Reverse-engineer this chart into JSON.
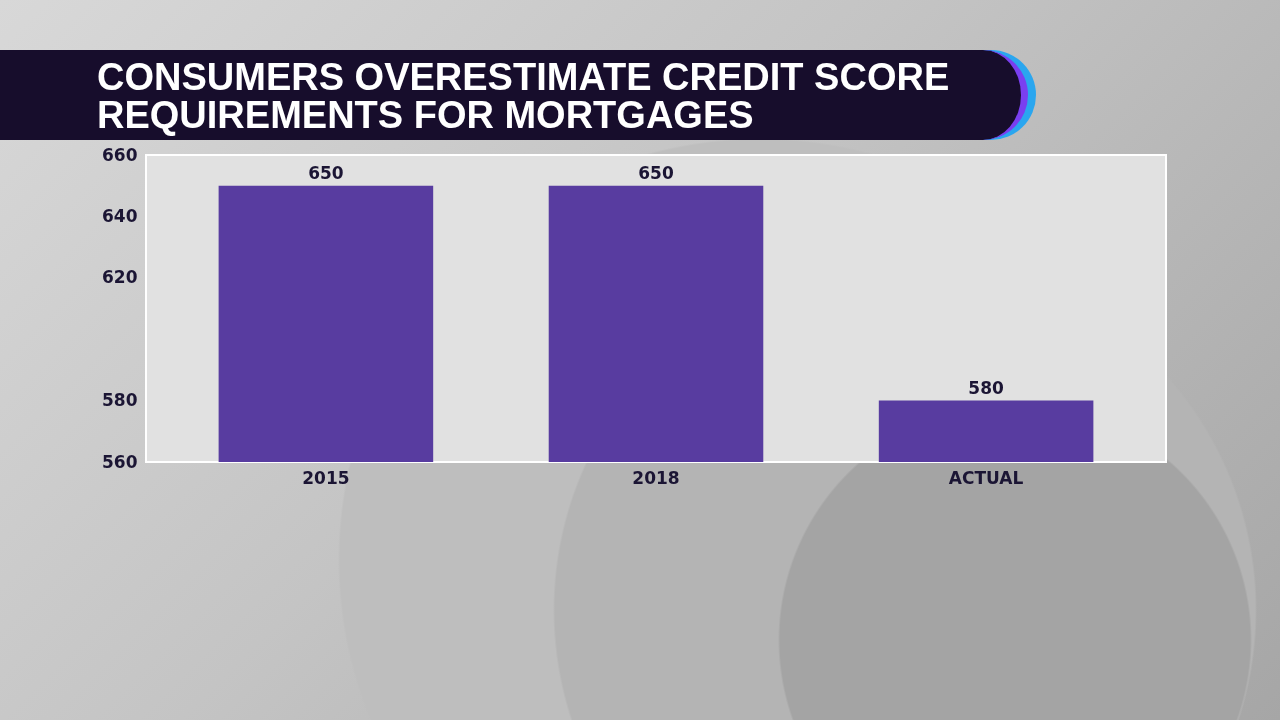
{
  "chart_data": {
    "type": "bar",
    "title": "CONSUMERS OVERESTIMATE CREDIT SCORE REQUIREMENTS FOR MORTGAGES",
    "categories": [
      "2015",
      "2018",
      "ACTUAL"
    ],
    "values": [
      650,
      650,
      580
    ],
    "color": "#583ca0",
    "ylim": [
      560,
      660
    ],
    "yticks": [
      560,
      580,
      620,
      640,
      660
    ],
    "data_labels": true
  }
}
